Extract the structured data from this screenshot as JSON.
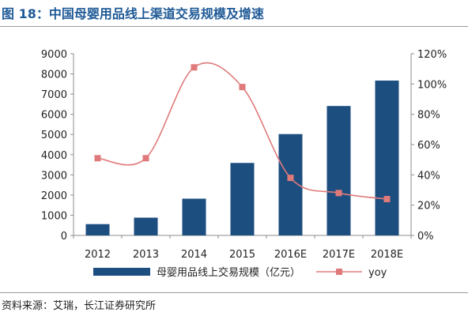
{
  "title": "图 18：中国母婴用品线上渠道交易规模及增速",
  "source": "资料来源：艾瑞，长江证券研究所",
  "colors": {
    "bar": "#1c4e80",
    "line": "#e07a7a",
    "marker": "#e07a7a",
    "title": "#1f5a96"
  },
  "chart_data": {
    "type": "bar",
    "title": "",
    "categories": [
      "2012",
      "2013",
      "2014",
      "2015",
      "2016E",
      "2017E",
      "2018E"
    ],
    "series": [
      {
        "name": "母婴用品线上交易规模（亿元）",
        "type": "bar",
        "axis": "left",
        "values": [
          560,
          880,
          1820,
          3590,
          5020,
          6410,
          7670
        ]
      },
      {
        "name": "yoy",
        "type": "line",
        "axis": "right",
        "unit": "%",
        "values": [
          51,
          51,
          111,
          98,
          38,
          28,
          24
        ]
      }
    ],
    "y_left": {
      "ylim": [
        0,
        9000
      ],
      "ticks": [
        "0",
        "1000",
        "2000",
        "3000",
        "4000",
        "5000",
        "6000",
        "7000",
        "8000",
        "9000"
      ]
    },
    "y_right": {
      "ylim": [
        0,
        120
      ],
      "ticks": [
        "0%",
        "20%",
        "40%",
        "60%",
        "80%",
        "100%",
        "120%"
      ]
    },
    "grid": false,
    "legend": "bottom"
  }
}
